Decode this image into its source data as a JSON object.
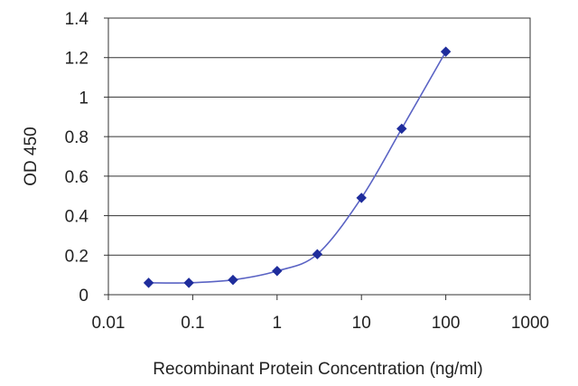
{
  "chart_data": {
    "type": "line",
    "title": "",
    "xlabel": "Recombinant Protein Concentration (ng/ml)",
    "ylabel": "OD 450",
    "x_scale": "log",
    "xlim": [
      0.01,
      1000
    ],
    "ylim": [
      0,
      1.4
    ],
    "x_ticks": [
      "0.01",
      "0.1",
      "1",
      "10",
      "100",
      "1000"
    ],
    "y_ticks": [
      "0",
      "0.2",
      "0.4",
      "0.6",
      "0.8",
      "1",
      "1.2",
      "1.4"
    ],
    "grid": "horizontal",
    "legend": "none",
    "series": [
      {
        "color": "#1f2d9c",
        "marker": "diamond",
        "x": [
          0.03,
          0.09,
          0.3,
          1,
          3,
          10,
          30,
          100
        ],
        "y": [
          0.06,
          0.06,
          0.075,
          0.12,
          0.205,
          0.49,
          0.84,
          1.23
        ]
      }
    ]
  }
}
